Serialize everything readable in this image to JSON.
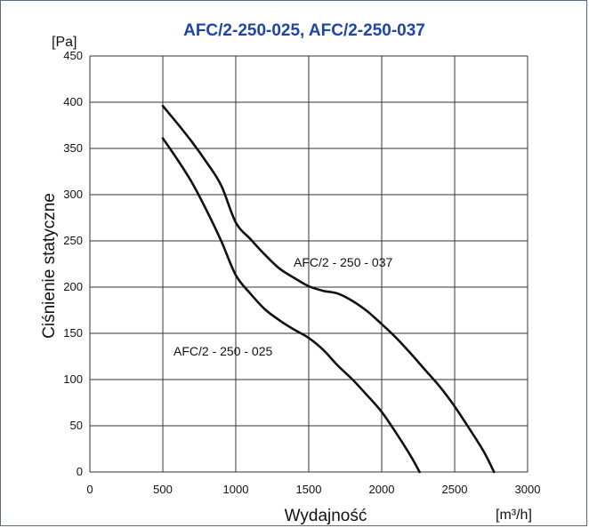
{
  "chart_data": {
    "type": "line",
    "title": "AFC/2-250-025, AFC/2-250-037",
    "ylabel": "Ciśnienie statyczne",
    "ylabel_unit": "[Pa]",
    "xlabel": "Wydajność",
    "xlabel_unit": "[m³/h]",
    "xlim": [
      0,
      3000
    ],
    "ylim": [
      0,
      450
    ],
    "x_ticks": [
      0,
      500,
      1000,
      1500,
      2000,
      2500,
      3000
    ],
    "y_ticks": [
      0,
      50,
      100,
      150,
      200,
      250,
      300,
      350,
      400,
      450
    ],
    "grid": true,
    "series": [
      {
        "name": "AFC/2 - 250 - 037",
        "x": [
          500,
          600,
          700,
          800,
          900,
          1000,
          1100,
          1200,
          1300,
          1400,
          1500,
          1600,
          1700,
          1800,
          1900,
          2000,
          2100,
          2200,
          2300,
          2400,
          2500,
          2600,
          2700,
          2770
        ],
        "y": [
          396,
          377,
          357,
          335,
          310,
          270,
          252,
          235,
          220,
          210,
          201,
          196,
          193,
          185,
          174,
          160,
          145,
          128,
          110,
          92,
          71,
          47,
          22,
          0
        ]
      },
      {
        "name": "AFC/2 - 250 - 025",
        "x": [
          500,
          600,
          700,
          800,
          900,
          1000,
          1100,
          1200,
          1300,
          1400,
          1500,
          1600,
          1700,
          1800,
          1900,
          2000,
          2100,
          2200,
          2260
        ],
        "y": [
          361,
          338,
          313,
          283,
          250,
          213,
          193,
          176,
          164,
          154,
          145,
          132,
          115,
          100,
          83,
          65,
          42,
          17,
          0
        ]
      }
    ]
  }
}
